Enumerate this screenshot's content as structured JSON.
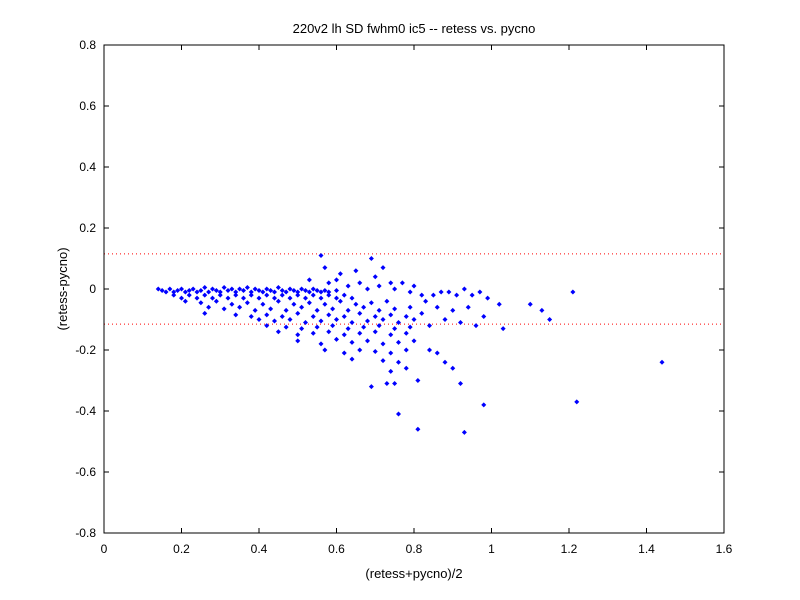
{
  "chart_data": {
    "type": "scatter",
    "title": "220v2 lh SD fwhm0 ic5 -- retess vs. pycno",
    "xlabel": "(retess+pycno)/2",
    "ylabel": "(retess-pycno)",
    "xlim": [
      0,
      1.6
    ],
    "ylim": [
      -0.8,
      0.8
    ],
    "xticks": [
      0,
      0.2,
      0.4,
      0.6,
      0.8,
      1,
      1.2,
      1.4,
      1.6
    ],
    "yticks": [
      -0.8,
      -0.6,
      -0.4,
      -0.2,
      0,
      0.2,
      0.4,
      0.6,
      0.8
    ],
    "xtick_labels": [
      "0",
      "0.2",
      "0.4",
      "0.6",
      "0.8",
      "1",
      "1.2",
      "1.4",
      "1.6"
    ],
    "ytick_labels": [
      "-0.8",
      "-0.6",
      "-0.4",
      "-0.2",
      "0",
      "0.2",
      "0.4",
      "0.6",
      "0.8"
    ],
    "grid": false,
    "reference_lines": [
      {
        "y": 0.115,
        "style": "dotted",
        "color": "#ff0000"
      },
      {
        "y": -0.115,
        "style": "dotted",
        "color": "#ff0000"
      }
    ],
    "marker_color": "#0000ff",
    "series": [
      {
        "points": [
          [
            0.14,
            0.0
          ],
          [
            0.15,
            -0.005
          ],
          [
            0.16,
            -0.01
          ],
          [
            0.17,
            0.0
          ],
          [
            0.18,
            -0.01
          ],
          [
            0.19,
            -0.005
          ],
          [
            0.2,
            0.0
          ],
          [
            0.21,
            -0.01
          ],
          [
            0.22,
            -0.005
          ],
          [
            0.23,
            0.0
          ],
          [
            0.24,
            -0.01
          ],
          [
            0.25,
            -0.005
          ],
          [
            0.26,
            0.005
          ],
          [
            0.27,
            -0.01
          ],
          [
            0.28,
            0.0
          ],
          [
            0.29,
            -0.005
          ],
          [
            0.3,
            -0.01
          ],
          [
            0.31,
            0.005
          ],
          [
            0.32,
            -0.005
          ],
          [
            0.33,
            0.0
          ],
          [
            0.34,
            -0.01
          ],
          [
            0.35,
            0.0
          ],
          [
            0.36,
            -0.005
          ],
          [
            0.37,
            0.005
          ],
          [
            0.38,
            -0.01
          ],
          [
            0.39,
            0.0
          ],
          [
            0.4,
            -0.005
          ],
          [
            0.41,
            -0.01
          ],
          [
            0.42,
            0.0
          ],
          [
            0.43,
            -0.005
          ],
          [
            0.44,
            -0.01
          ],
          [
            0.45,
            0.005
          ],
          [
            0.46,
            -0.005
          ],
          [
            0.47,
            -0.01
          ],
          [
            0.48,
            0.0
          ],
          [
            0.49,
            -0.005
          ],
          [
            0.5,
            -0.01
          ],
          [
            0.51,
            0.0
          ],
          [
            0.52,
            -0.005
          ],
          [
            0.53,
            -0.01
          ],
          [
            0.54,
            0.0
          ],
          [
            0.55,
            -0.005
          ],
          [
            0.56,
            -0.01
          ],
          [
            0.57,
            -0.005
          ],
          [
            0.58,
            -0.01
          ],
          [
            0.6,
            -0.005
          ],
          [
            0.18,
            -0.02
          ],
          [
            0.2,
            -0.03
          ],
          [
            0.22,
            -0.02
          ],
          [
            0.24,
            -0.03
          ],
          [
            0.26,
            -0.02
          ],
          [
            0.28,
            -0.03
          ],
          [
            0.3,
            -0.02
          ],
          [
            0.32,
            -0.03
          ],
          [
            0.34,
            -0.02
          ],
          [
            0.36,
            -0.03
          ],
          [
            0.38,
            -0.02
          ],
          [
            0.4,
            -0.03
          ],
          [
            0.42,
            -0.02
          ],
          [
            0.44,
            -0.03
          ],
          [
            0.46,
            -0.02
          ],
          [
            0.48,
            -0.03
          ],
          [
            0.5,
            -0.02
          ],
          [
            0.52,
            -0.03
          ],
          [
            0.54,
            -0.02
          ],
          [
            0.56,
            -0.03
          ],
          [
            0.58,
            -0.02
          ],
          [
            0.6,
            -0.03
          ],
          [
            0.62,
            -0.02
          ],
          [
            0.64,
            -0.03
          ],
          [
            0.21,
            -0.04
          ],
          [
            0.25,
            -0.045
          ],
          [
            0.29,
            -0.04
          ],
          [
            0.33,
            -0.05
          ],
          [
            0.37,
            -0.045
          ],
          [
            0.41,
            -0.05
          ],
          [
            0.45,
            -0.04
          ],
          [
            0.49,
            -0.05
          ],
          [
            0.53,
            -0.045
          ],
          [
            0.57,
            -0.05
          ],
          [
            0.61,
            -0.04
          ],
          [
            0.65,
            -0.05
          ],
          [
            0.69,
            -0.045
          ],
          [
            0.73,
            -0.04
          ],
          [
            0.27,
            -0.06
          ],
          [
            0.31,
            -0.065
          ],
          [
            0.35,
            -0.06
          ],
          [
            0.39,
            -0.07
          ],
          [
            0.43,
            -0.065
          ],
          [
            0.47,
            -0.07
          ],
          [
            0.51,
            -0.06
          ],
          [
            0.55,
            -0.07
          ],
          [
            0.59,
            -0.065
          ],
          [
            0.63,
            -0.07
          ],
          [
            0.67,
            -0.06
          ],
          [
            0.71,
            -0.07
          ],
          [
            0.75,
            -0.065
          ],
          [
            0.79,
            -0.06
          ],
          [
            0.26,
            -0.08
          ],
          [
            0.34,
            -0.085
          ],
          [
            0.38,
            -0.09
          ],
          [
            0.42,
            -0.085
          ],
          [
            0.46,
            -0.09
          ],
          [
            0.5,
            -0.08
          ],
          [
            0.54,
            -0.09
          ],
          [
            0.58,
            -0.085
          ],
          [
            0.62,
            -0.09
          ],
          [
            0.66,
            -0.08
          ],
          [
            0.7,
            -0.09
          ],
          [
            0.74,
            -0.085
          ],
          [
            0.78,
            -0.09
          ],
          [
            0.4,
            -0.1
          ],
          [
            0.44,
            -0.105
          ],
          [
            0.48,
            -0.1
          ],
          [
            0.52,
            -0.11
          ],
          [
            0.56,
            -0.105
          ],
          [
            0.6,
            -0.1
          ],
          [
            0.64,
            -0.11
          ],
          [
            0.68,
            -0.105
          ],
          [
            0.72,
            -0.1
          ],
          [
            0.76,
            -0.11
          ],
          [
            0.8,
            -0.1
          ],
          [
            0.42,
            -0.12
          ],
          [
            0.47,
            -0.125
          ],
          [
            0.51,
            -0.13
          ],
          [
            0.55,
            -0.125
          ],
          [
            0.59,
            -0.12
          ],
          [
            0.63,
            -0.13
          ],
          [
            0.67,
            -0.125
          ],
          [
            0.71,
            -0.12
          ],
          [
            0.75,
            -0.13
          ],
          [
            0.79,
            -0.125
          ],
          [
            0.45,
            -0.14
          ],
          [
            0.5,
            -0.15
          ],
          [
            0.54,
            -0.145
          ],
          [
            0.58,
            -0.14
          ],
          [
            0.62,
            -0.15
          ],
          [
            0.66,
            -0.145
          ],
          [
            0.7,
            -0.14
          ],
          [
            0.74,
            -0.15
          ],
          [
            0.78,
            -0.145
          ],
          [
            0.5,
            -0.17
          ],
          [
            0.56,
            -0.18
          ],
          [
            0.6,
            -0.165
          ],
          [
            0.64,
            -0.175
          ],
          [
            0.68,
            -0.17
          ],
          [
            0.72,
            -0.18
          ],
          [
            0.76,
            -0.175
          ],
          [
            0.8,
            -0.17
          ],
          [
            0.57,
            -0.2
          ],
          [
            0.62,
            -0.21
          ],
          [
            0.66,
            -0.2
          ],
          [
            0.7,
            -0.205
          ],
          [
            0.74,
            -0.21
          ],
          [
            0.78,
            -0.2
          ],
          [
            0.84,
            -0.2
          ],
          [
            0.64,
            -0.23
          ],
          [
            0.72,
            -0.235
          ],
          [
            0.76,
            -0.24
          ],
          [
            0.88,
            -0.24
          ],
          [
            0.86,
            -0.21
          ],
          [
            0.74,
            -0.27
          ],
          [
            0.78,
            -0.26
          ],
          [
            0.9,
            -0.26
          ],
          [
            0.69,
            -0.32
          ],
          [
            0.73,
            -0.31
          ],
          [
            0.75,
            -0.31
          ],
          [
            0.81,
            -0.3
          ],
          [
            0.92,
            -0.31
          ],
          [
            0.76,
            -0.41
          ],
          [
            0.81,
            -0.46
          ],
          [
            0.93,
            -0.47
          ],
          [
            0.98,
            -0.38
          ],
          [
            0.83,
            -0.04
          ],
          [
            0.85,
            -0.02
          ],
          [
            0.87,
            -0.01
          ],
          [
            0.89,
            -0.01
          ],
          [
            0.91,
            -0.02
          ],
          [
            0.93,
            0.0
          ],
          [
            0.95,
            -0.02
          ],
          [
            0.97,
            -0.01
          ],
          [
            0.99,
            -0.03
          ],
          [
            1.02,
            -0.05
          ],
          [
            0.86,
            -0.06
          ],
          [
            0.9,
            -0.07
          ],
          [
            0.94,
            -0.06
          ],
          [
            0.98,
            -0.09
          ],
          [
            1.03,
            -0.13
          ],
          [
            0.88,
            -0.1
          ],
          [
            0.82,
            -0.08
          ],
          [
            0.84,
            -0.12
          ],
          [
            0.92,
            -0.11
          ],
          [
            0.96,
            -0.12
          ],
          [
            1.1,
            -0.05
          ],
          [
            1.13,
            -0.07
          ],
          [
            1.15,
            -0.1
          ],
          [
            1.21,
            -0.01
          ],
          [
            1.22,
            -0.37
          ],
          [
            1.44,
            -0.24
          ],
          [
            0.56,
            0.11
          ],
          [
            0.69,
            0.1
          ],
          [
            0.61,
            0.05
          ],
          [
            0.65,
            0.06
          ],
          [
            0.72,
            0.07
          ],
          [
            0.57,
            0.07
          ],
          [
            0.6,
            0.03
          ],
          [
            0.66,
            0.02
          ],
          [
            0.7,
            0.04
          ],
          [
            0.74,
            0.02
          ],
          [
            0.77,
            0.02
          ],
          [
            0.8,
            0.01
          ],
          [
            0.58,
            0.02
          ],
          [
            0.53,
            0.03
          ],
          [
            0.63,
            0.01
          ],
          [
            0.68,
            0.0
          ],
          [
            0.71,
            0.01
          ],
          [
            0.75,
            0.0
          ],
          [
            0.79,
            -0.01
          ],
          [
            0.82,
            -0.02
          ]
        ]
      }
    ]
  }
}
